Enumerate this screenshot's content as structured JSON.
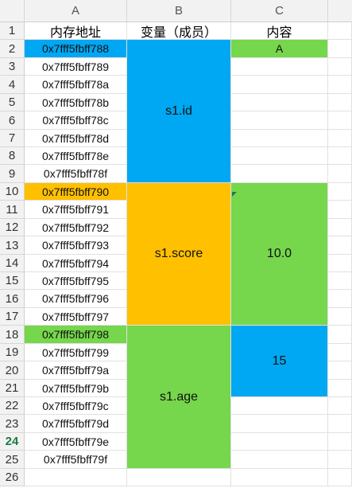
{
  "sheet": {
    "columns": [
      "A",
      "B",
      "C"
    ],
    "headers": [
      "内存地址",
      "变量（成员）",
      "内容"
    ],
    "addresses": [
      "0x7fff5fbff788",
      "0x7fff5fbff789",
      "0x7fff5fbff78a",
      "0x7fff5fbff78b",
      "0x7fff5fbff78c",
      "0x7fff5fbff78d",
      "0x7fff5fbff78e",
      "0x7fff5fbff78f",
      "0x7fff5fbff790",
      "0x7fff5fbff791",
      "0x7fff5fbff792",
      "0x7fff5fbff793",
      "0x7fff5fbff794",
      "0x7fff5fbff795",
      "0x7fff5fbff796",
      "0x7fff5fbff797",
      "0x7fff5fbff798",
      "0x7fff5fbff799",
      "0x7fff5fbff79a",
      "0x7fff5fbff79b",
      "0x7fff5fbff79c",
      "0x7fff5fbff79d",
      "0x7fff5fbff79e",
      "0x7fff5fbff79f"
    ],
    "members": [
      "s1.id",
      "s1.score",
      "s1.age"
    ],
    "contents": [
      "A",
      "10.0",
      "15"
    ],
    "active_row": "24",
    "colors": {
      "blue": "#00a7f2",
      "orange": "#ffc000",
      "green": "#76d64c",
      "header_bg": "#f2f2f2"
    }
  }
}
